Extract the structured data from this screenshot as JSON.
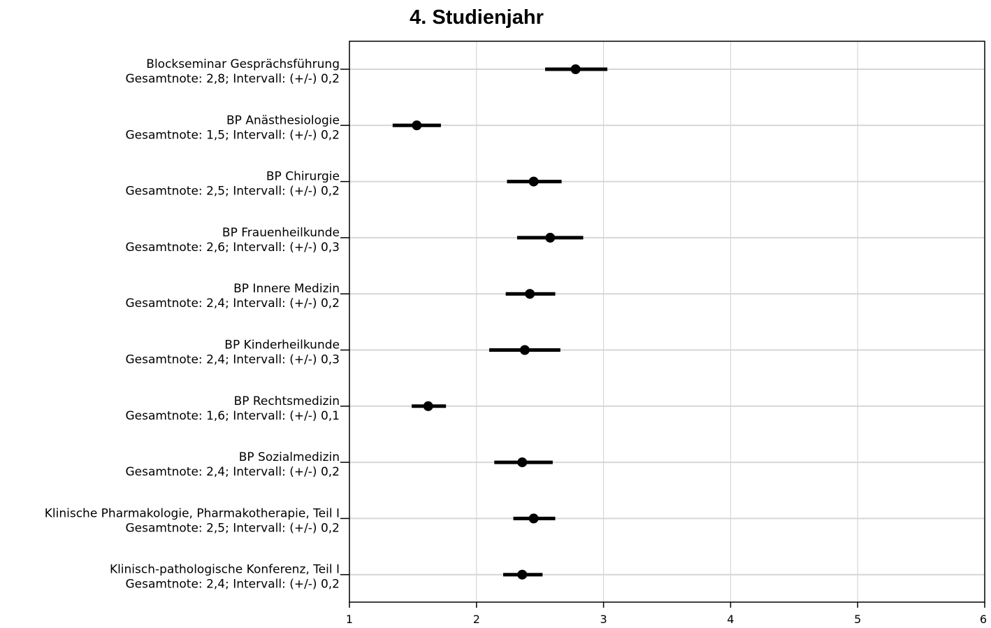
{
  "chart_data": {
    "type": "forest",
    "title": "4. Studienjahr",
    "xlim": [
      1,
      6
    ],
    "xticks": [
      1,
      2,
      3,
      4,
      5,
      6
    ],
    "grid": true,
    "items": [
      {
        "label": "Blockseminar Gesprächsführung",
        "sublabel": "Gesamtnote: 2,8;  Intervall: (+/-) 0,2",
        "value": 2.78,
        "low": 2.54,
        "high": 3.03
      },
      {
        "label": "BP Anästhesiologie",
        "sublabel": "Gesamtnote: 1,5;  Intervall: (+/-) 0,2",
        "value": 1.53,
        "low": 1.34,
        "high": 1.72
      },
      {
        "label": "BP Chirurgie",
        "sublabel": "Gesamtnote: 2,5;  Intervall: (+/-) 0,2",
        "value": 2.45,
        "low": 2.24,
        "high": 2.67
      },
      {
        "label": "BP Frauenheilkunde",
        "sublabel": "Gesamtnote: 2,6;  Intervall: (+/-) 0,3",
        "value": 2.58,
        "low": 2.32,
        "high": 2.84
      },
      {
        "label": "BP Innere Medizin",
        "sublabel": "Gesamtnote: 2,4;  Intervall: (+/-) 0,2",
        "value": 2.42,
        "low": 2.23,
        "high": 2.62
      },
      {
        "label": "BP Kinderheilkunde",
        "sublabel": "Gesamtnote: 2,4;  Intervall: (+/-) 0,3",
        "value": 2.38,
        "low": 2.1,
        "high": 2.66
      },
      {
        "label": "BP Rechtsmedizin",
        "sublabel": "Gesamtnote: 1,6;  Intervall: (+/-) 0,1",
        "value": 1.62,
        "low": 1.49,
        "high": 1.76
      },
      {
        "label": "BP Sozialmedizin",
        "sublabel": "Gesamtnote: 2,4;  Intervall: (+/-) 0,2",
        "value": 2.36,
        "low": 2.14,
        "high": 2.6
      },
      {
        "label": "Klinische Pharmakologie, Pharmakotherapie, Teil I",
        "sublabel": "Gesamtnote: 2,5;  Intervall: (+/-) 0,2",
        "value": 2.45,
        "low": 2.29,
        "high": 2.62
      },
      {
        "label": "Klinisch-pathologische Konferenz, Teil I",
        "sublabel": "Gesamtnote: 2,4;  Intervall: (+/-) 0,2",
        "value": 2.36,
        "low": 2.21,
        "high": 2.52
      }
    ]
  }
}
